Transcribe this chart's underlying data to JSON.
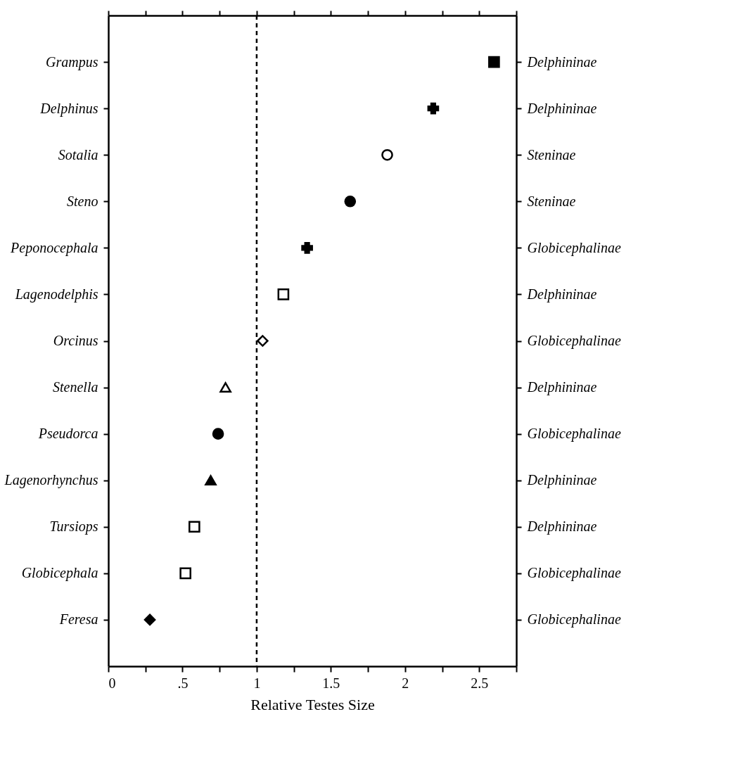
{
  "chart_data": {
    "type": "scatter",
    "orientation": "horizontal",
    "xlabel": "Relative Testes Size",
    "categories": [
      "Grampus",
      "Delphinus",
      "Sotalia",
      "Steno",
      "Peponocephala",
      "Lagenodelphis",
      "Orcinus",
      "Stenella",
      "Pseudorca",
      "Lagenorhynchus",
      "Tursiops",
      "Globicephala",
      "Feresa"
    ],
    "y2_categories": [
      "Delphininae",
      "Delphininae",
      "Steninae",
      "Steninae",
      "Globicephalinae",
      "Delphininae",
      "Globicephalinae",
      "Delphininae",
      "Globicephalinae",
      "Delphininae",
      "Delphininae",
      "Globicephalinae",
      "Globicephalinae"
    ],
    "values": [
      2.6,
      2.19,
      1.88,
      1.63,
      1.34,
      1.18,
      1.04,
      0.79,
      0.74,
      0.69,
      0.58,
      0.52,
      0.28
    ],
    "marker": [
      "square",
      "cross",
      "circle",
      "circle",
      "cross",
      "square",
      "diamond",
      "triangle",
      "circle",
      "triangle",
      "square",
      "square",
      "diamond"
    ],
    "colors": [
      "#000000",
      "#000000",
      "#ffffff",
      "#000000",
      "#000000",
      "#ffffff",
      "#ffffff",
      "#ffffff",
      "#000000",
      "#000000",
      "#ffffff",
      "#ffffff",
      "#000000"
    ],
    "xlim": [
      0,
      2.75
    ],
    "xticks": [
      0,
      {
        "value": 0.25,
        "label": null
      },
      {
        "value": 0.5,
        "label": ".5"
      },
      {
        "value": 0.75,
        "label": null
      },
      1,
      {
        "value": 1.25,
        "label": null
      },
      1.5,
      {
        "value": 1.75,
        "label": null
      },
      2,
      {
        "value": 2.25,
        "label": null
      },
      2.5,
      {
        "value": 2.75,
        "label": null
      }
    ],
    "ref_lines": [
      {
        "axis": "x",
        "value": 1,
        "line_style": "dashed"
      }
    ],
    "grid": false,
    "legend": false
  }
}
